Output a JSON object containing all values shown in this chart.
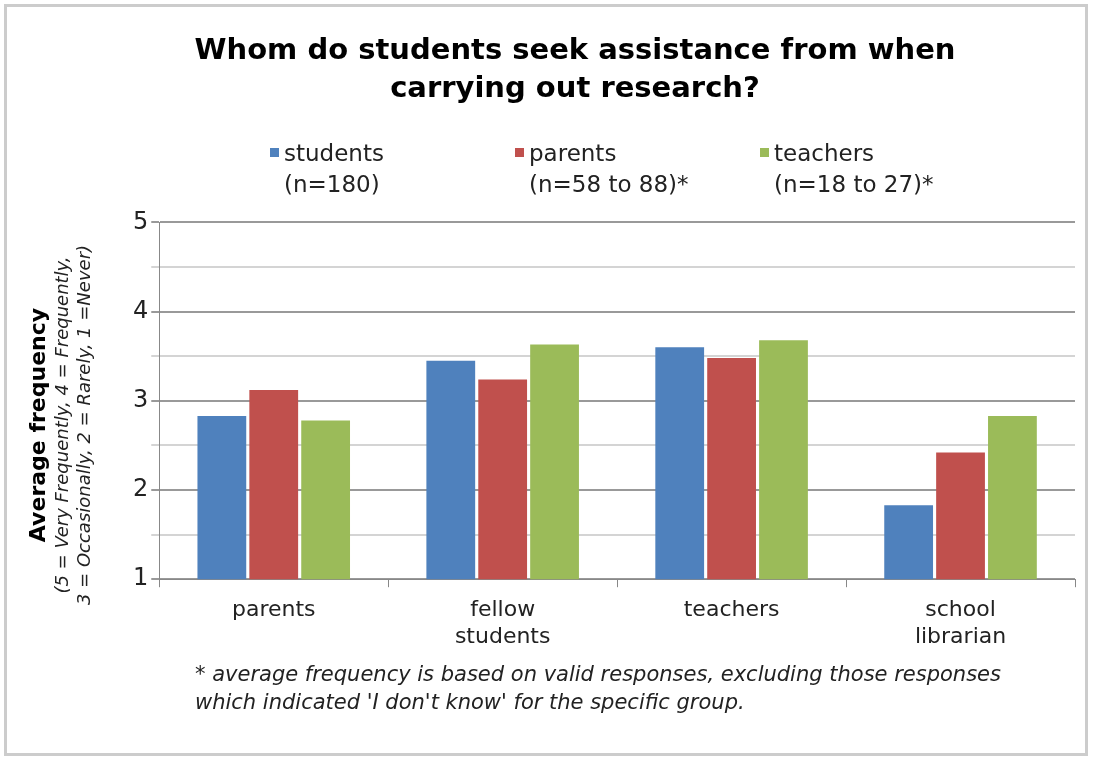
{
  "chart_data": {
    "type": "bar",
    "title": "Whom do students seek assistance from when carrying out research?",
    "ylabel": "Average frequency\n(5 = Very Frequently, 4 = Frequently,\n3 = Occasionally, 2 = Rarely, 1 =Never)",
    "categories": [
      "parents",
      "fellow students",
      "teachers",
      "school librarian"
    ],
    "series": [
      {
        "name": "students\n(n=180)",
        "color": "#4f81bd",
        "values": [
          2.83,
          3.45,
          3.6,
          1.83
        ]
      },
      {
        "name": "parents\n(n=58 to 88)*",
        "color": "#c0504d",
        "values": [
          3.12,
          3.24,
          3.48,
          2.42
        ]
      },
      {
        "name": "teachers\n(n=18 to 27)*",
        "color": "#9bbb59",
        "values": [
          2.78,
          3.63,
          3.68,
          2.83
        ]
      }
    ],
    "ylim": [
      1,
      5
    ],
    "yticks": [
      1,
      {
        "value": 1.5,
        "label": null
      },
      2,
      {
        "value": 2.5,
        "label": null
      },
      3,
      {
        "value": 3.5,
        "label": null
      },
      4,
      {
        "value": 4.5,
        "label": null
      },
      5
    ],
    "grid": "y",
    "legend": "top",
    "annotations": [
      "* average frequency is based on valid responses, excluding those responses which indicated 'I don't know' for the specific group."
    ]
  }
}
